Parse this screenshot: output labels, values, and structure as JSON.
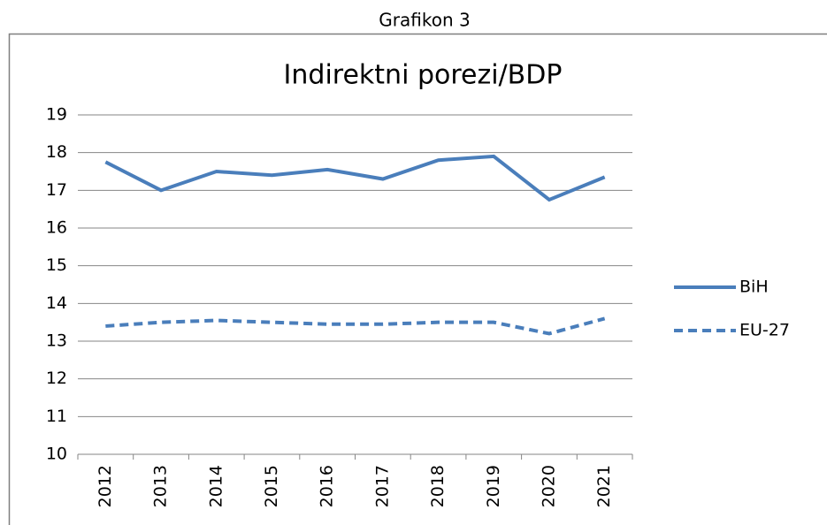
{
  "caption": "Grafikon 3",
  "chart_data": {
    "type": "line",
    "title": "Indirektni porezi/BDP",
    "categories": [
      "2012",
      "2013",
      "2014",
      "2015",
      "2016",
      "2017",
      "2018",
      "2019",
      "2020",
      "2021"
    ],
    "series": [
      {
        "name": "BiH",
        "color": "#4a7ebb",
        "line_style": "solid",
        "values": [
          17.75,
          17.0,
          17.5,
          17.4,
          17.55,
          17.3,
          17.8,
          17.9,
          16.75,
          17.35
        ]
      },
      {
        "name": "EU-27",
        "color": "#4a7ebb",
        "line_style": "dashed",
        "values": [
          13.4,
          13.5,
          13.55,
          13.5,
          13.45,
          13.45,
          13.5,
          13.5,
          13.2,
          13.6
        ]
      }
    ],
    "ylim": [
      10,
      19
    ],
    "yticks": [
      10,
      11,
      12,
      13,
      14,
      15,
      16,
      17,
      18,
      19
    ],
    "grid": true,
    "legend": "right"
  }
}
